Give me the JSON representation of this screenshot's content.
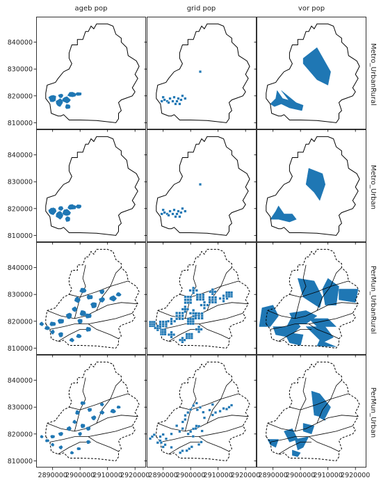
{
  "chart_data": {
    "type": "map-grid",
    "column_titles": [
      "ageb pop",
      "grid pop",
      "vor pop"
    ],
    "row_titles": [
      "Metro_UrbanRural",
      "Metro_Urban",
      "PerMun_UrbanRural",
      "PerMun_Urban"
    ],
    "x_ticks": [
      "2890000",
      "2900000",
      "2910000",
      "2920000"
    ],
    "x_tick_values": [
      2890000,
      2900000,
      2910000,
      2920000
    ],
    "y_ticks": [
      "810000",
      "820000",
      "830000",
      "840000"
    ],
    "y_tick_values": [
      810000,
      820000,
      830000,
      840000
    ],
    "xlim": [
      2884000,
      2924000
    ],
    "ylim": [
      807500,
      849500
    ],
    "fill_color": "#1f77b4",
    "boundary_color": "#000000",
    "boundary": [
      [
        2887.5,
        819
      ],
      [
        2889,
        817
      ],
      [
        2889.5,
        813.5
      ],
      [
        2892,
        812.5
      ],
      [
        2893,
        812.5
      ],
      [
        2894,
        813
      ],
      [
        2896,
        811
      ],
      [
        2900,
        811
      ],
      [
        2906,
        810.8
      ],
      [
        2913,
        810
      ],
      [
        2914,
        811.5
      ],
      [
        2914,
        813.5
      ],
      [
        2915,
        814.5
      ],
      [
        2914,
        817.5
      ],
      [
        2915,
        818.5
      ],
      [
        2919,
        820
      ],
      [
        2920,
        821.5
      ],
      [
        2919,
        823
      ],
      [
        2921,
        826.5
      ],
      [
        2920,
        828
      ],
      [
        2921.5,
        831
      ],
      [
        2920.5,
        833
      ],
      [
        2917.5,
        835
      ],
      [
        2917,
        838
      ],
      [
        2915,
        840
      ],
      [
        2915,
        841.5
      ],
      [
        2913,
        843
      ],
      [
        2912,
        846
      ],
      [
        2910,
        846.8
      ],
      [
        2906,
        846.8
      ],
      [
        2905,
        845
      ],
      [
        2904,
        846
      ],
      [
        2903,
        844
      ],
      [
        2902,
        844
      ],
      [
        2901,
        841
      ],
      [
        2899,
        841
      ],
      [
        2899,
        839
      ],
      [
        2897,
        839
      ],
      [
        2896,
        836
      ],
      [
        2896,
        834
      ],
      [
        2897,
        832
      ],
      [
        2896,
        830
      ],
      [
        2894,
        829
      ],
      [
        2892,
        826.5
      ],
      [
        2891,
        825
      ],
      [
        2888,
        824
      ],
      [
        2887.5,
        821
      ]
    ],
    "municipal_divisions": [
      [
        [
          2889,
          817
        ],
        [
          2894,
          818
        ],
        [
          2898,
          819
        ],
        [
          2903,
          819
        ],
        [
          2906,
          817
        ],
        [
          2911,
          815
        ],
        [
          2914,
          813.5
        ]
      ],
      [
        [
          2892,
          812.5
        ],
        [
          2896,
          815
        ],
        [
          2900,
          817
        ],
        [
          2904,
          817
        ]
      ],
      [
        [
          2888,
          824
        ],
        [
          2893,
          822
        ],
        [
          2898,
          821
        ],
        [
          2902,
          822
        ],
        [
          2906,
          824
        ],
        [
          2910,
          826
        ],
        [
          2915,
          827
        ],
        [
          2921,
          826.5
        ]
      ],
      [
        [
          2898,
          821
        ],
        [
          2899,
          825
        ],
        [
          2900,
          829
        ],
        [
          2902,
          833
        ],
        [
          2901,
          836
        ],
        [
          2902,
          841
        ]
      ],
      [
        [
          2906,
          824
        ],
        [
          2908,
          829
        ],
        [
          2911,
          833
        ],
        [
          2913,
          838
        ],
        [
          2915,
          840
        ]
      ],
      [
        [
          2903,
          819
        ],
        [
          2908,
          820
        ],
        [
          2913,
          821
        ],
        [
          2919,
          823
        ]
      ],
      [
        [
          2896,
          830
        ],
        [
          2900,
          829
        ],
        [
          2906,
          831
        ],
        [
          2911,
          833
        ],
        [
          2917.5,
          835
        ]
      ]
    ],
    "ageb_metro_clusters": [
      [
        2890,
        819,
        1.6,
        1.4
      ],
      [
        2892.5,
        817.5,
        1.4,
        1.6
      ],
      [
        2895,
        818.5,
        1.6,
        1.3
      ],
      [
        2897,
        820.5,
        1.7,
        1.0
      ],
      [
        2895.5,
        816,
        1.0,
        1.0
      ],
      [
        2899.5,
        820.7,
        1.2,
        0.7
      ],
      [
        2893,
        820,
        1.0,
        0.8
      ]
    ],
    "grid_metro_cells": [
      [
        2889.5,
        818
      ],
      [
        2890.5,
        818.5
      ],
      [
        2890,
        819.5
      ],
      [
        2891.5,
        818
      ],
      [
        2892.5,
        819
      ],
      [
        2893.5,
        818
      ],
      [
        2894,
        819.5
      ],
      [
        2895,
        818
      ],
      [
        2895.5,
        819
      ],
      [
        2896.5,
        818.5
      ],
      [
        2897,
        820
      ],
      [
        2898,
        819
      ],
      [
        2894.5,
        817
      ],
      [
        2896,
        817
      ],
      [
        2892,
        817.5
      ],
      [
        2903.5,
        829
      ]
    ],
    "voronoi_metro_urbanrural": [
      [
        [
          2901,
          834
        ],
        [
          2906,
          838
        ],
        [
          2911,
          829
        ],
        [
          2910,
          824
        ],
        [
          2906,
          826
        ],
        [
          2901,
          832
        ]
      ],
      [
        [
          2889,
          817
        ],
        [
          2891,
          819
        ],
        [
          2891.5,
          822
        ],
        [
          2893.5,
          819
        ],
        [
          2897,
          818
        ],
        [
          2901,
          816.5
        ],
        [
          2900.5,
          814.5
        ],
        [
          2896,
          815.5
        ],
        [
          2893,
          817
        ],
        [
          2890.5,
          816
        ]
      ],
      [
        [
          2893,
          822
        ],
        [
          2896,
          818
        ],
        [
          2899,
          817
        ]
      ]
    ],
    "voronoi_metro_urban": [
      [
        [
          2903,
          835
        ],
        [
          2902,
          829
        ],
        [
          2905,
          826
        ],
        [
          2907,
          823
        ],
        [
          2909,
          829
        ],
        [
          2908,
          833
        ]
      ],
      [
        [
          2889,
          816
        ],
        [
          2891,
          819
        ],
        [
          2892,
          821
        ],
        [
          2894,
          818
        ],
        [
          2897,
          818
        ],
        [
          2898.5,
          816
        ],
        [
          2896,
          815
        ],
        [
          2892,
          816
        ]
      ]
    ],
    "ageb_permun_clusters": [
      [
        2886,
        819,
        0.8,
        0.8
      ],
      [
        2888,
        817.5,
        1.0,
        0.8
      ],
      [
        2890,
        819,
        1.2,
        0.9
      ],
      [
        2893,
        820,
        1.3,
        1.0
      ],
      [
        2896,
        822,
        1.2,
        1.2
      ],
      [
        2898,
        824.5,
        1.0,
        1.0
      ],
      [
        2899,
        828,
        1.1,
        1.2
      ],
      [
        2901,
        831.5,
        1.3,
        1.0
      ],
      [
        2903.5,
        829,
        1.2,
        1.0
      ],
      [
        2905,
        826,
        1.3,
        1.2
      ],
      [
        2908,
        828,
        1.2,
        1.0
      ],
      [
        2912,
        828.5,
        1.4,
        1.1
      ],
      [
        2914,
        830,
        1.0,
        0.8
      ],
      [
        2901,
        823,
        1.2,
        1.2
      ],
      [
        2903,
        822,
        1.3,
        1.0
      ],
      [
        2893,
        815,
        1.0,
        1.0
      ],
      [
        2890,
        816,
        0.8,
        0.9
      ],
      [
        2897,
        813,
        0.9,
        0.8
      ],
      [
        2899.5,
        814.5,
        1.0,
        0.8
      ],
      [
        2903,
        817,
        1.0,
        1.0
      ],
      [
        2900,
        820,
        1.0,
        1.0
      ],
      [
        2908,
        831,
        1.0,
        0.9
      ]
    ],
    "voronoi_permun_urbanrural": [
      [
        [
          2899,
          836
        ],
        [
          2905,
          835
        ],
        [
          2908,
          829
        ],
        [
          2907,
          825
        ],
        [
          2901,
          829
        ]
      ],
      [
        [
          2910,
          836
        ],
        [
          2914,
          833
        ],
        [
          2913,
          826
        ],
        [
          2909,
          826
        ],
        [
          2908,
          832
        ]
      ],
      [
        [
          2914,
          832
        ],
        [
          2921,
          832
        ],
        [
          2920,
          827
        ],
        [
          2914,
          828
        ]
      ],
      [
        [
          2886,
          825
        ],
        [
          2890,
          826
        ],
        [
          2892,
          822
        ],
        [
          2889,
          818
        ],
        [
          2885,
          818
        ]
      ],
      [
        [
          2890,
          818
        ],
        [
          2895,
          818
        ],
        [
          2897,
          822
        ],
        [
          2900,
          818
        ],
        [
          2896,
          814
        ],
        [
          2891,
          815
        ]
      ],
      [
        [
          2896,
          823
        ],
        [
          2902,
          824
        ],
        [
          2906,
          822
        ],
        [
          2902,
          819
        ],
        [
          2898,
          819
        ]
      ],
      [
        [
          2902,
          818
        ],
        [
          2909,
          818
        ],
        [
          2912,
          814
        ],
        [
          2908,
          812
        ]
      ],
      [
        [
          2903,
          821
        ],
        [
          2910,
          821
        ],
        [
          2913,
          818
        ],
        [
          2906,
          818
        ]
      ],
      [
        [
          2894,
          816
        ],
        [
          2896,
          812
        ],
        [
          2900,
          811
        ],
        [
          2901,
          815
        ]
      ],
      [
        [
          2907,
          813
        ],
        [
          2913,
          810.5
        ],
        [
          2906,
          810.8
        ]
      ]
    ],
    "voronoi_permun_urban": [
      [
        [
          2904,
          836
        ],
        [
          2907,
          835
        ],
        [
          2911,
          830
        ],
        [
          2909,
          826
        ],
        [
          2905,
          827
        ]
      ],
      [
        [
          2906,
          831
        ],
        [
          2908,
          829
        ],
        [
          2909,
          825
        ],
        [
          2907,
          826
        ]
      ],
      [
        [
          2894,
          821
        ],
        [
          2897,
          822
        ],
        [
          2899,
          818
        ],
        [
          2896,
          817
        ]
      ],
      [
        [
          2898,
          818
        ],
        [
          2903,
          819
        ],
        [
          2901,
          815
        ],
        [
          2899,
          814
        ]
      ],
      [
        [
          2901,
          824
        ],
        [
          2905,
          823
        ],
        [
          2904,
          820
        ],
        [
          2901,
          821
        ]
      ],
      [
        [
          2888,
          818
        ],
        [
          2892,
          818
        ],
        [
          2891,
          815
        ],
        [
          2889,
          816
        ]
      ],
      [
        [
          2897,
          814
        ],
        [
          2900,
          813
        ],
        [
          2899,
          811.5
        ],
        [
          2897,
          812
        ]
      ]
    ]
  }
}
